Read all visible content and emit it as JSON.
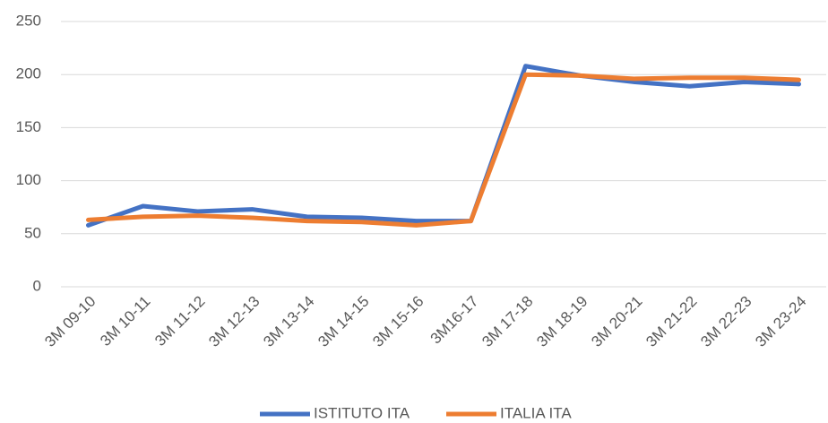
{
  "chart_data": {
    "type": "line",
    "categories": [
      "3M 09-10",
      "3M 10-11",
      "3M 11-12",
      "3M 12-13",
      "3M 13-14",
      "3M 14-15",
      "3M 15-16",
      "3M16-17",
      "3M 17-18",
      "3M 18-19",
      "3M 20-21",
      "3M 21-22",
      "3M 22-23",
      "3M 23-24"
    ],
    "series": [
      {
        "name": "ISTITUTO ITA",
        "color": "#4472c4",
        "values": [
          58,
          76,
          71,
          73,
          66,
          65,
          62,
          62,
          208,
          199,
          193,
          189,
          193,
          191
        ]
      },
      {
        "name": "ITALIA ITA",
        "color": "#ed7d31",
        "values": [
          63,
          66,
          67,
          65,
          62,
          61,
          58,
          62,
          200,
          199,
          196,
          197,
          197,
          195
        ]
      }
    ],
    "ylim": [
      0,
      250
    ],
    "yticks": [
      0,
      50,
      100,
      150,
      200,
      250
    ],
    "grid": true,
    "legend": "bottom"
  }
}
